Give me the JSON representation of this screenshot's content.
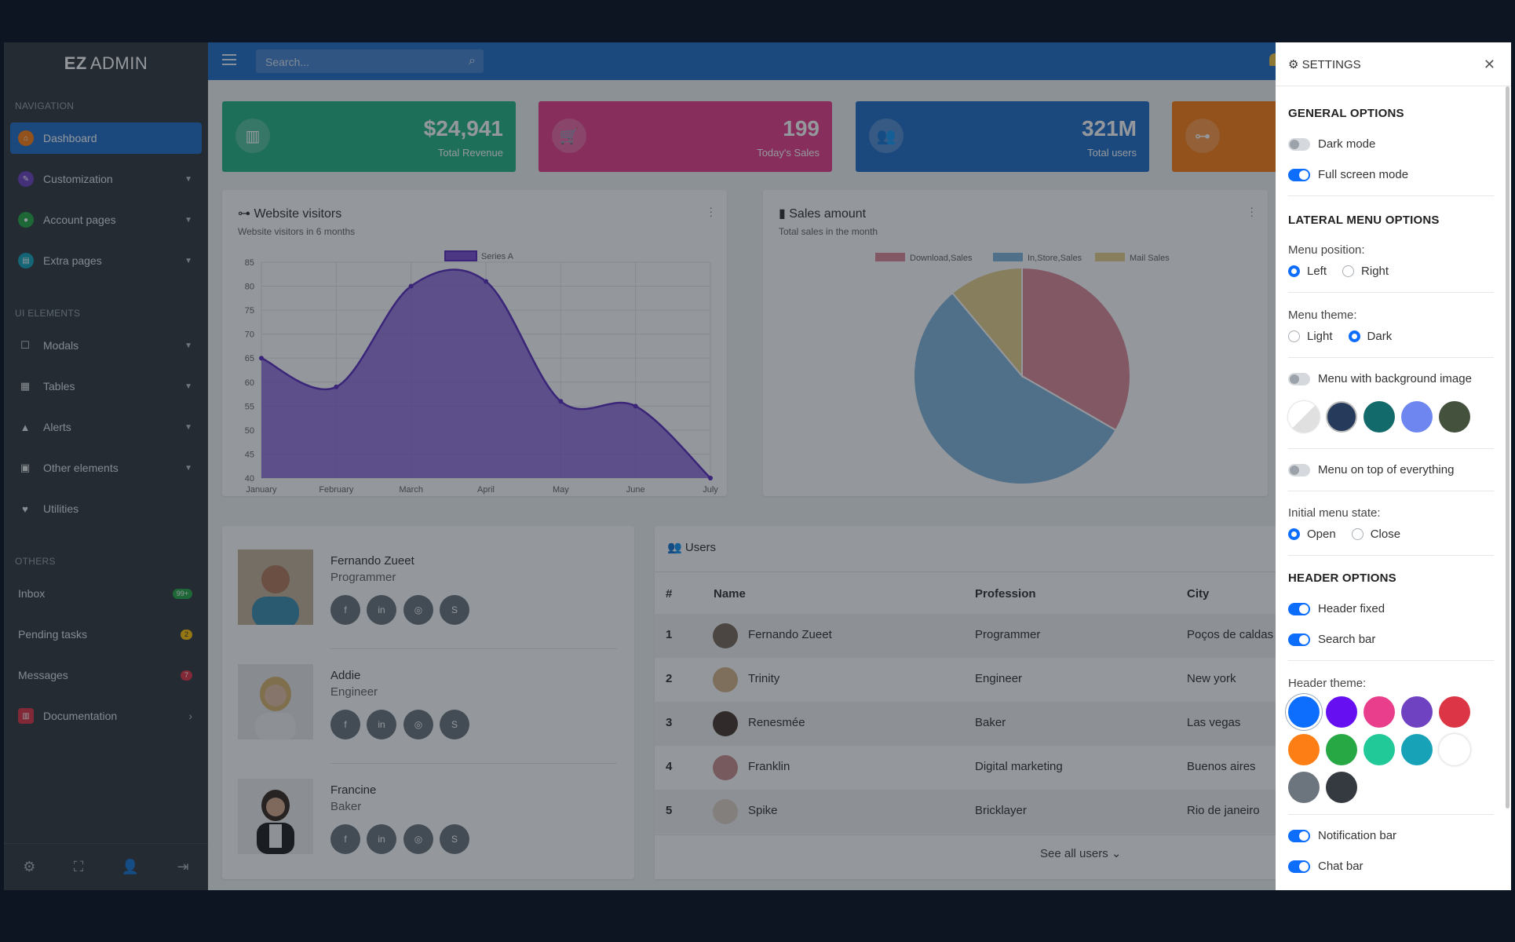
{
  "brand": {
    "mark": "EZ",
    "name": "ADMIN"
  },
  "sidebar": {
    "sections": [
      "NAVIGATION",
      "UI ELEMENTS",
      "OTHERS"
    ],
    "nav": [
      {
        "label": "Dashboard",
        "icon": "home-icon",
        "color": "#fd7e14"
      },
      {
        "label": "Customization",
        "icon": "palette-icon",
        "color": "#6f42c1"
      },
      {
        "label": "Account pages",
        "icon": "user-icon",
        "color": "#28a745"
      },
      {
        "label": "Extra pages",
        "icon": "file-icon",
        "color": "#17a2b8"
      }
    ],
    "ui": [
      {
        "label": "Modals",
        "icon": "square-icon"
      },
      {
        "label": "Tables",
        "icon": "table-icon"
      },
      {
        "label": "Alerts",
        "icon": "warning-icon"
      },
      {
        "label": "Other elements",
        "icon": "list-icon"
      },
      {
        "label": "Utilities",
        "icon": "heart-icon"
      }
    ],
    "others": [
      {
        "label": "Inbox",
        "badge": "99+",
        "badge_color": "#28a745"
      },
      {
        "label": "Pending tasks",
        "badge": "2",
        "badge_color": "#ffc107"
      },
      {
        "label": "Messages",
        "badge": "7",
        "badge_color": "#dc3545"
      },
      {
        "label": "Documentation",
        "icon": "book-icon",
        "color": "#dc3545"
      }
    ],
    "footer_icons": [
      "gear-icon",
      "fullscreen-icon",
      "user-lock-icon",
      "logout-icon"
    ]
  },
  "header": {
    "search_placeholder": "Search..."
  },
  "stats": [
    {
      "value": "$24,941",
      "label": "Total Revenue",
      "color": "#28b485",
      "icon": "chart-icon"
    },
    {
      "value": "199",
      "label": "Today's Sales",
      "color": "#e83e8c",
      "icon": "cart-icon"
    },
    {
      "value": "321M",
      "label": "Total users",
      "color": "#2670c7",
      "icon": "users-icon"
    },
    {
      "value": "",
      "label": "",
      "color": "#fd7e14",
      "icon": "sitemap-icon"
    }
  ],
  "visitors": {
    "title": "Website visitors",
    "subtitle": "Website visitors in 6 months"
  },
  "sales": {
    "title": "Sales amount",
    "subtitle": "Total sales in the month"
  },
  "chart_data": [
    {
      "type": "area",
      "categories": [
        "January",
        "February",
        "March",
        "April",
        "May",
        "June",
        "July"
      ],
      "series": [
        {
          "name": "Series A",
          "values": [
            65,
            59,
            80,
            81,
            56,
            55,
            40
          ],
          "color": "#7b4fd1"
        }
      ],
      "ylim": [
        40,
        85
      ],
      "yticks": [
        40,
        45,
        50,
        55,
        60,
        65,
        70,
        75,
        80,
        85
      ],
      "legend": "top",
      "grid": true
    },
    {
      "type": "pie",
      "categories": [
        "Download,Sales",
        "In,Store,Sales",
        "Mail Sales"
      ],
      "values": [
        300,
        500,
        100
      ],
      "colors": [
        "#e08a9c",
        "#84b5dd",
        "#e6cf8c"
      ],
      "legend": "top"
    }
  ],
  "people": [
    {
      "name": "Fernando Zueet",
      "role": "Programmer"
    },
    {
      "name": "Addie",
      "role": "Engineer"
    },
    {
      "name": "Francine",
      "role": "Baker"
    }
  ],
  "social_icons": [
    "facebook-icon",
    "linkedin-icon",
    "instagram-icon",
    "skype-icon"
  ],
  "users": {
    "title": "Users",
    "columns": [
      "#",
      "Name",
      "Profession",
      "City"
    ],
    "rows": [
      {
        "n": "1",
        "name": "Fernando Zueet",
        "profession": "Programmer",
        "city": "Poços de caldas"
      },
      {
        "n": "2",
        "name": "Trinity",
        "profession": "Engineer",
        "city": "New york"
      },
      {
        "n": "3",
        "name": "Renesmée",
        "profession": "Baker",
        "city": "Las vegas"
      },
      {
        "n": "4",
        "name": "Franklin",
        "profession": "Digital marketing",
        "city": "Buenos aires"
      },
      {
        "n": "5",
        "name": "Spike",
        "profession": "Bricklayer",
        "city": "Rio de janeiro"
      }
    ],
    "see_all": "See all users"
  },
  "settings": {
    "title": "SETTINGS",
    "general": {
      "heading": "GENERAL OPTIONS",
      "dark_mode": "Dark mode",
      "full_screen": "Full screen mode"
    },
    "lateral": {
      "heading": "LATERAL MENU OPTIONS",
      "position_label": "Menu position:",
      "left": "Left",
      "right": "Right",
      "theme_label": "Menu theme:",
      "light": "Light",
      "dark": "Dark",
      "bg_image": "Menu with background image",
      "on_top": "Menu on top of everything",
      "state_label": "Initial menu state:",
      "open": "Open",
      "close": "Close"
    },
    "header": {
      "heading": "HEADER OPTIONS",
      "fixed": "Header fixed",
      "search": "Search bar",
      "theme_label": "Header theme:",
      "notification": "Notification bar",
      "chat": "Chat bar"
    },
    "header_theme_colors": [
      "#0d6efd",
      "#6610f2",
      "#e83e8c",
      "#6f42c1",
      "#dc3545",
      "#fd7e14",
      "#28a745",
      "#20c997",
      "#17a2b8",
      "#ffffff",
      "#6c757d",
      "#343a40"
    ],
    "menu_bg_thumbs": [
      "#f2f2f2",
      "#263b5c",
      "#136a6b",
      "#6e87f0",
      "#44513d"
    ]
  }
}
